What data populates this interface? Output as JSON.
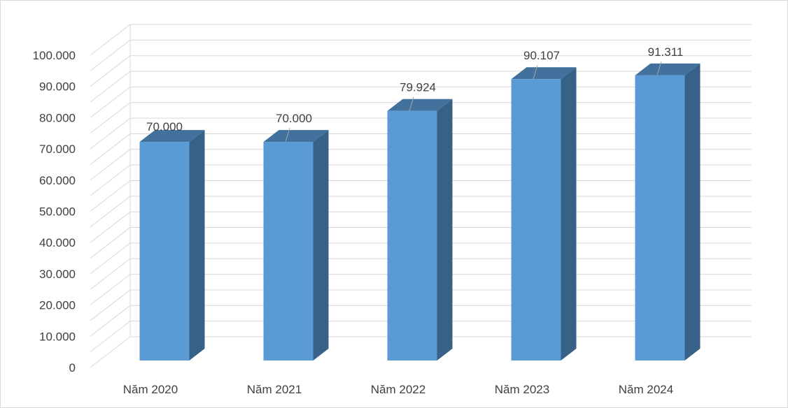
{
  "chart_data": {
    "type": "bar",
    "style": "3d-column",
    "categories": [
      "Năm 2020",
      "Năm 2021",
      "Năm 2022",
      "Năm 2023",
      "Năm 2024"
    ],
    "values": [
      70000,
      70000,
      79924,
      90107,
      91311
    ],
    "data_labels": [
      "70.000",
      "70.000",
      "79.924",
      "90.107",
      "91.311"
    ],
    "ylim": [
      0,
      100000
    ],
    "yticks": [
      0,
      10000,
      20000,
      30000,
      40000,
      50000,
      60000,
      70000,
      80000,
      90000,
      100000
    ],
    "ytick_labels": [
      "0",
      "10.000",
      "20.000",
      "30.000",
      "40.000",
      "50.000",
      "60.000",
      "70.000",
      "80.000",
      "90.000",
      "100.000"
    ],
    "grid": true,
    "legend": false,
    "colors": {
      "bar_front": "#5b9bd5",
      "bar_side": "#376187",
      "bar_top": "#41719c",
      "grid": "#d9d9d9",
      "text": "#404040"
    }
  }
}
